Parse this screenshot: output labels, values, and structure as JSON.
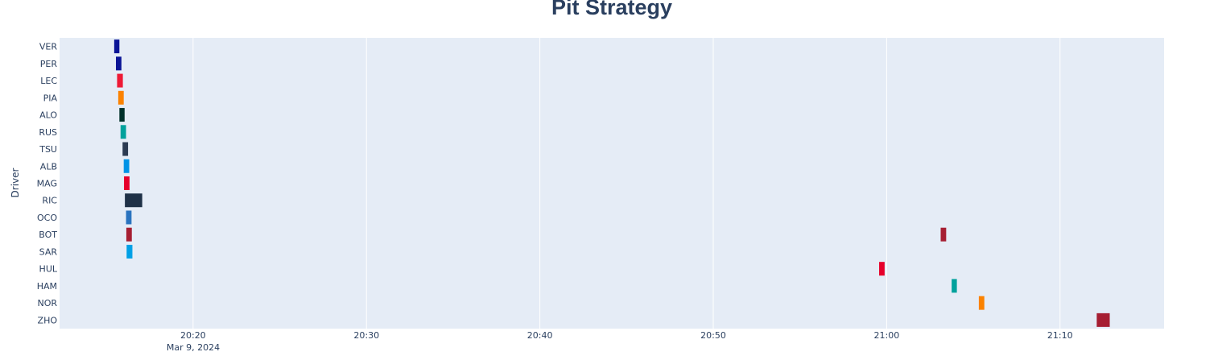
{
  "chart_data": {
    "type": "timeline",
    "title": "Pit Strategy",
    "ylabel": "Driver",
    "xlabel": "",
    "x_axis_type": "time",
    "x_date_label": "Mar 9, 2024",
    "xlim": [
      "20:12:18",
      "21:16:00"
    ],
    "x_ticks": [
      "20:20",
      "20:30",
      "20:40",
      "20:50",
      "21:00",
      "21:10"
    ],
    "grid": true,
    "legend": "none",
    "plot_background": "#e5ecf6",
    "categories": [
      "VER",
      "PER",
      "LEC",
      "PIA",
      "ALO",
      "RUS",
      "TSU",
      "ALB",
      "MAG",
      "RIC",
      "OCO",
      "BOT",
      "SAR",
      "HUL",
      "HAM",
      "NOR",
      "ZHO"
    ],
    "bars": [
      {
        "driver": "VER",
        "start": "20:15:27",
        "end": "20:15:45",
        "color": "#0a1496"
      },
      {
        "driver": "PER",
        "start": "20:15:33",
        "end": "20:15:52",
        "color": "#0a1496"
      },
      {
        "driver": "LEC",
        "start": "20:15:37",
        "end": "20:15:57",
        "color": "#ee1a35"
      },
      {
        "driver": "PIA",
        "start": "20:15:41",
        "end": "20:16:00",
        "color": "#fb8200"
      },
      {
        "driver": "ALO",
        "start": "20:15:45",
        "end": "20:16:03",
        "color": "#00312a"
      },
      {
        "driver": "RUS",
        "start": "20:15:49",
        "end": "20:16:08",
        "color": "#00a19c"
      },
      {
        "driver": "TSU",
        "start": "20:15:56",
        "end": "20:16:15",
        "color": "#2b3b52"
      },
      {
        "driver": "ALB",
        "start": "20:16:00",
        "end": "20:16:19",
        "color": "#0093e6"
      },
      {
        "driver": "MAG",
        "start": "20:16:01",
        "end": "20:16:20",
        "color": "#e6002b"
      },
      {
        "driver": "RIC",
        "start": "20:16:04",
        "end": "20:17:04",
        "color": "#1f3147"
      },
      {
        "driver": "OCO",
        "start": "20:16:08",
        "end": "20:16:27",
        "color": "#2a73bf"
      },
      {
        "driver": "BOT",
        "start": "20:16:09",
        "end": "20:16:28",
        "color": "#a61e32"
      },
      {
        "driver": "SAR",
        "start": "20:16:10",
        "end": "20:16:30",
        "color": "#00a0e6"
      },
      {
        "driver": "HUL",
        "start": "20:59:34",
        "end": "20:59:53",
        "color": "#e6002b"
      },
      {
        "driver": "BOT",
        "start": "21:03:07",
        "end": "21:03:26",
        "color": "#a61e32"
      },
      {
        "driver": "HAM",
        "start": "21:03:45",
        "end": "21:04:03",
        "color": "#00a19c"
      },
      {
        "driver": "NOR",
        "start": "21:05:19",
        "end": "21:05:38",
        "color": "#fb8200"
      },
      {
        "driver": "ZHO",
        "start": "21:12:07",
        "end": "21:12:52",
        "color": "#a61e32"
      }
    ]
  }
}
